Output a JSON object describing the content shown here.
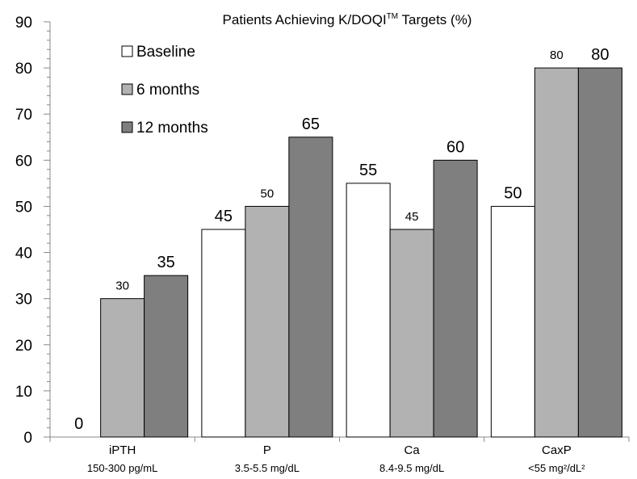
{
  "chart_data": {
    "type": "bar",
    "title": "Patients Achieving K/DOQI",
    "title_superscript": "TM",
    "title_suffix": " Targets (%)",
    "categories": [
      "iPTH",
      "P",
      "Ca",
      "CaxP"
    ],
    "category_subtitles": [
      "150-300 pg/mL",
      "3.5-5.5 mg/dL",
      "8.4-9.5 mg/dL",
      "<55 mg²/dL²"
    ],
    "series": [
      {
        "name": "Baseline",
        "values": [
          0,
          45,
          55,
          50
        ],
        "color": "#ffffff"
      },
      {
        "name": "6 months",
        "values": [
          30,
          50,
          45,
          80
        ],
        "color": "#b2b2b2"
      },
      {
        "name": "12 months",
        "values": [
          35,
          65,
          60,
          80
        ],
        "color": "#7f7f7f"
      }
    ],
    "data_labels": [
      [
        "0",
        "45",
        "55",
        "50"
      ],
      [
        "30",
        "50",
        "45",
        "80"
      ],
      [
        "35",
        "65",
        "60",
        "80"
      ]
    ],
    "ylim": [
      0,
      90
    ],
    "yticks": [
      0,
      10,
      20,
      30,
      40,
      50,
      60,
      70,
      80,
      90
    ],
    "grid": false,
    "legend": "top-left"
  }
}
